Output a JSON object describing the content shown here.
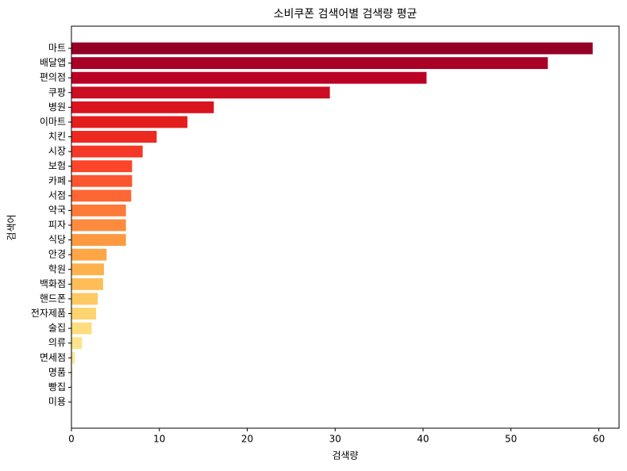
{
  "chart_data": {
    "type": "barh",
    "title": "소비쿠폰 검색어별 검색량 평균",
    "x_label": "검색량",
    "y_label": "검색어",
    "categories": [
      "마트",
      "배달앱",
      "편의점",
      "쿠팡",
      "병원",
      "이마트",
      "치킨",
      "시장",
      "보험",
      "카페",
      "서점",
      "약국",
      "피자",
      "식당",
      "안경",
      "학원",
      "백화점",
      "핸드폰",
      "전자제품",
      "술집",
      "의류",
      "면세점",
      "명품",
      "빵집",
      "미용"
    ],
    "values": [
      59.3,
      54.2,
      40.4,
      29.4,
      16.2,
      13.2,
      9.7,
      8.1,
      6.9,
      6.9,
      6.8,
      6.2,
      6.2,
      6.2,
      4.0,
      3.7,
      3.6,
      3.0,
      2.8,
      2.3,
      1.2,
      0.4,
      0.1,
      0.05,
      0.02
    ],
    "colors": [
      "#940026",
      "#a80026",
      "#bb0026",
      "#cb0c22",
      "#d9141f",
      "#e41e1c",
      "#ec2a20",
      "#f43726",
      "#fb462b",
      "#fc5630",
      "#fd6734",
      "#fd7a39",
      "#fd8b3d",
      "#fd9940",
      "#fea646",
      "#feb24c",
      "#febd57",
      "#fec863",
      "#fed470",
      "#fedd7e",
      "#fee38c",
      "#ffe99b",
      "#ffeeaa",
      "#fff3b8",
      "#fff8c6"
    ],
    "xlim": [
      0,
      62.3
    ],
    "xticks": [
      0,
      10,
      20,
      30,
      40,
      50,
      60
    ]
  }
}
